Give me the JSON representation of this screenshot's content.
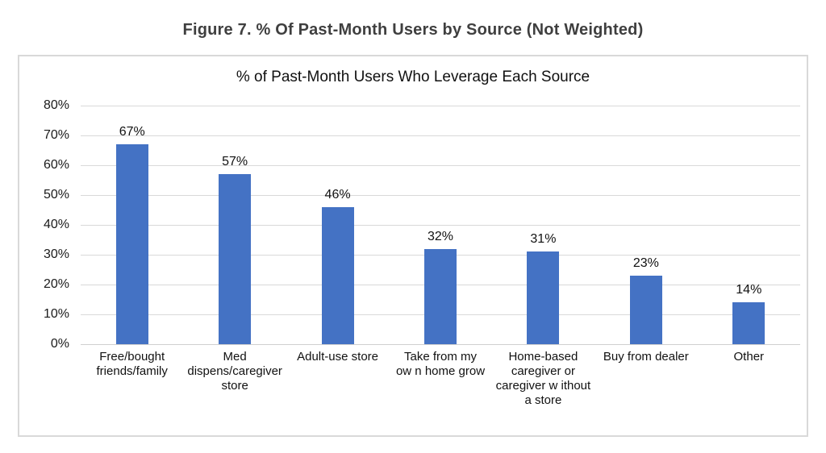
{
  "figure_title": "Figure 7. % Of Past-Month Users by Source (Not Weighted)",
  "chart_data": {
    "type": "bar",
    "title": "% of Past-Month Users Who Leverage Each Source",
    "categories": [
      "Free/bought\nfriends/family",
      "Med\ndispens/caregiver\nstore",
      "Adult-use store",
      "Take from my\now n home grow",
      "Home-based\ncaregiver or\ncaregiver w ithout\na store",
      "Buy from dealer",
      "Other"
    ],
    "values": [
      67,
      57,
      46,
      32,
      31,
      23,
      14
    ],
    "value_labels": [
      "67%",
      "57%",
      "46%",
      "32%",
      "31%",
      "23%",
      "14%"
    ],
    "y_tick_values": [
      0,
      10,
      20,
      30,
      40,
      50,
      60,
      70,
      80
    ],
    "y_tick_labels": [
      "0%",
      "10%",
      "20%",
      "30%",
      "40%",
      "50%",
      "60%",
      "70%",
      "80%"
    ],
    "ylim": [
      0,
      80
    ],
    "grid": true,
    "legend": "none",
    "bar_color": "#4472c4"
  },
  "colors": {
    "bar": "#4472c4",
    "gridline": "#d9d9d9",
    "chart_border": "#d9d9d9",
    "figure_title_text": "#3f3f3f",
    "chart_text": "#111111"
  }
}
